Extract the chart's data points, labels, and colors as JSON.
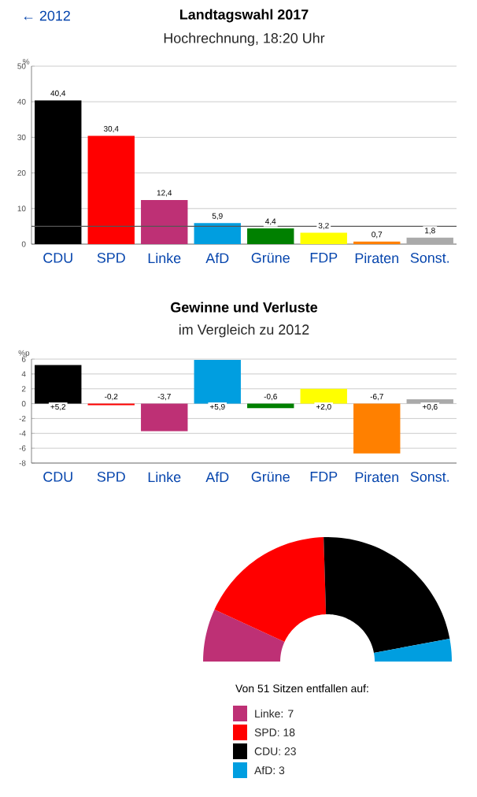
{
  "chart_data": [
    {
      "type": "bar",
      "title": "Landtagswahl 2017",
      "subtitle": "Hochrechnung, 18:20 Uhr",
      "annotations": [
        "← 2012"
      ],
      "ylabel": "%",
      "categories": [
        "CDU",
        "SPD",
        "Linke",
        "AfD",
        "Grüne",
        "FDP",
        "Piraten",
        "Sonst."
      ],
      "values": [
        40.4,
        30.4,
        12.4,
        5.9,
        4.4,
        3.2,
        0.7,
        1.8
      ],
      "colors": [
        "#000000",
        "#ff0000",
        "#be3075",
        "#009ee0",
        "#008000",
        "#ffff00",
        "#ff8000",
        "#aaaaaa"
      ],
      "value_labels": [
        "40,4",
        "30,4",
        "12,4",
        "5,9",
        "4,4",
        "3,2",
        "0,7",
        "1,8"
      ],
      "ylim": [
        0,
        50
      ],
      "yticks": [
        0,
        10,
        20,
        30,
        40,
        50
      ],
      "grid": "y",
      "ref_lines": [
        {
          "axis": "y",
          "value": 5,
          "color": "#555555"
        }
      ]
    },
    {
      "type": "bar",
      "title": "Gewinne und Verluste",
      "subtitle": "im Vergleich zu 2012",
      "ylabel": "%p",
      "categories": [
        "CDU",
        "SPD",
        "Linke",
        "AfD",
        "Grüne",
        "FDP",
        "Piraten",
        "Sonst."
      ],
      "values": [
        5.2,
        -0.2,
        -3.7,
        5.9,
        -0.6,
        2.0,
        -6.7,
        0.6
      ],
      "colors": [
        "#000000",
        "#ff0000",
        "#be3075",
        "#009ee0",
        "#008000",
        "#ffff00",
        "#ff8000",
        "#aaaaaa"
      ],
      "value_labels": [
        "+5,2",
        "-0,2",
        "-3,7",
        "+5,9",
        "-0,6",
        "+2,0",
        "-6,7",
        "+0,6"
      ],
      "ylim": [
        -8,
        6
      ],
      "yticks": [
        -8,
        -6,
        -4,
        -2,
        0,
        2,
        4,
        6
      ],
      "grid": "y"
    },
    {
      "type": "donut",
      "title": "Von 51 Sitzen entfallen auf:",
      "categories": [
        "Linke",
        "SPD",
        "CDU",
        "AfD"
      ],
      "values": [
        7,
        18,
        23,
        3
      ],
      "colors": [
        "#be3075",
        "#ff0000",
        "#000000",
        "#009ee0"
      ],
      "value_labels": [
        ": 7",
        ": 18",
        ": 23",
        ": 3"
      ],
      "legend": "bottom"
    }
  ]
}
